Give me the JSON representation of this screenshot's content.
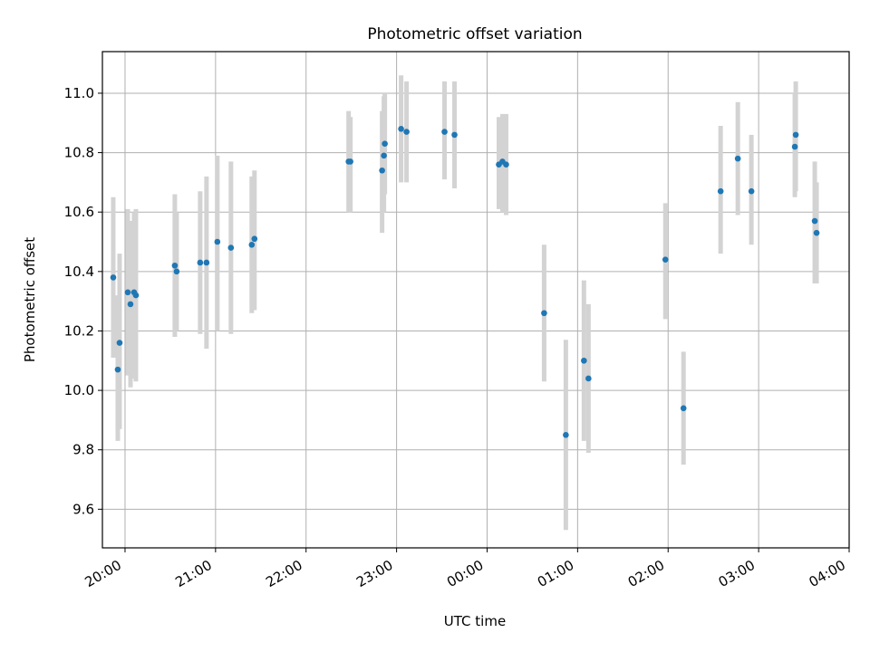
{
  "chart_data": {
    "type": "scatter",
    "title": "Photometric offset variation",
    "xlabel": "UTC time",
    "ylabel": "Photometric offset",
    "x_unit": "hours (UTC, continuing past midnight)",
    "xlim": [
      19.75,
      28.0
    ],
    "ylim": [
      9.47,
      11.14
    ],
    "grid": true,
    "x_ticks": [
      {
        "value": 20,
        "label": "20:00"
      },
      {
        "value": 21,
        "label": "21:00"
      },
      {
        "value": 22,
        "label": "22:00"
      },
      {
        "value": 23,
        "label": "23:00"
      },
      {
        "value": 24,
        "label": "00:00"
      },
      {
        "value": 25,
        "label": "01:00"
      },
      {
        "value": 26,
        "label": "02:00"
      },
      {
        "value": 27,
        "label": "03:00"
      },
      {
        "value": 28,
        "label": "04:00"
      }
    ],
    "y_ticks": [
      {
        "value": 9.6,
        "label": "9.6"
      },
      {
        "value": 9.8,
        "label": "9.8"
      },
      {
        "value": 10.0,
        "label": "10.0"
      },
      {
        "value": 10.2,
        "label": "10.2"
      },
      {
        "value": 10.4,
        "label": "10.4"
      },
      {
        "value": 10.6,
        "label": "10.6"
      },
      {
        "value": 10.8,
        "label": "10.8"
      },
      {
        "value": 11.0,
        "label": "11.0"
      }
    ],
    "colors": {
      "point": "#1f77b4",
      "errorbar": "#d3d3d3",
      "grid": "#b0b0b0"
    },
    "points": [
      {
        "x": 19.87,
        "y": 10.38,
        "lo": 10.11,
        "hi": 10.65
      },
      {
        "x": 19.92,
        "y": 10.07,
        "lo": 9.83,
        "hi": 10.32
      },
      {
        "x": 19.94,
        "y": 10.16,
        "lo": 9.87,
        "hi": 10.46
      },
      {
        "x": 20.03,
        "y": 10.33,
        "lo": 10.05,
        "hi": 10.61
      },
      {
        "x": 20.06,
        "y": 10.29,
        "lo": 10.01,
        "hi": 10.57
      },
      {
        "x": 20.1,
        "y": 10.33,
        "lo": 10.04,
        "hi": 10.6
      },
      {
        "x": 20.12,
        "y": 10.32,
        "lo": 10.03,
        "hi": 10.61
      },
      {
        "x": 20.55,
        "y": 10.42,
        "lo": 10.18,
        "hi": 10.66
      },
      {
        "x": 20.57,
        "y": 10.4,
        "lo": 10.2,
        "hi": 10.6
      },
      {
        "x": 20.83,
        "y": 10.43,
        "lo": 10.19,
        "hi": 10.67
      },
      {
        "x": 20.9,
        "y": 10.43,
        "lo": 10.14,
        "hi": 10.72
      },
      {
        "x": 21.02,
        "y": 10.5,
        "lo": 10.2,
        "hi": 10.79
      },
      {
        "x": 21.17,
        "y": 10.48,
        "lo": 10.19,
        "hi": 10.77
      },
      {
        "x": 21.4,
        "y": 10.49,
        "lo": 10.26,
        "hi": 10.72
      },
      {
        "x": 21.43,
        "y": 10.51,
        "lo": 10.27,
        "hi": 10.74
      },
      {
        "x": 22.47,
        "y": 10.77,
        "lo": 10.6,
        "hi": 10.94
      },
      {
        "x": 22.49,
        "y": 10.77,
        "lo": 10.6,
        "hi": 10.92
      },
      {
        "x": 22.84,
        "y": 10.74,
        "lo": 10.53,
        "hi": 10.94
      },
      {
        "x": 22.86,
        "y": 10.79,
        "lo": 10.6,
        "hi": 10.99
      },
      {
        "x": 22.87,
        "y": 10.83,
        "lo": 10.66,
        "hi": 11.0
      },
      {
        "x": 23.05,
        "y": 10.88,
        "lo": 10.7,
        "hi": 11.06
      },
      {
        "x": 23.11,
        "y": 10.87,
        "lo": 10.7,
        "hi": 11.04
      },
      {
        "x": 23.53,
        "y": 10.87,
        "lo": 10.71,
        "hi": 11.04
      },
      {
        "x": 23.64,
        "y": 10.86,
        "lo": 10.68,
        "hi": 11.04
      },
      {
        "x": 24.13,
        "y": 10.76,
        "lo": 10.61,
        "hi": 10.92
      },
      {
        "x": 24.17,
        "y": 10.77,
        "lo": 10.6,
        "hi": 10.93
      },
      {
        "x": 24.21,
        "y": 10.76,
        "lo": 10.59,
        "hi": 10.93
      },
      {
        "x": 24.63,
        "y": 10.26,
        "lo": 10.03,
        "hi": 10.49
      },
      {
        "x": 24.87,
        "y": 9.85,
        "lo": 9.53,
        "hi": 10.17
      },
      {
        "x": 25.07,
        "y": 10.1,
        "lo": 9.83,
        "hi": 10.37
      },
      {
        "x": 25.12,
        "y": 10.04,
        "lo": 9.79,
        "hi": 10.29
      },
      {
        "x": 25.97,
        "y": 10.44,
        "lo": 10.24,
        "hi": 10.63
      },
      {
        "x": 26.17,
        "y": 9.94,
        "lo": 9.75,
        "hi": 10.13
      },
      {
        "x": 26.58,
        "y": 10.67,
        "lo": 10.46,
        "hi": 10.89
      },
      {
        "x": 26.77,
        "y": 10.78,
        "lo": 10.59,
        "hi": 10.97
      },
      {
        "x": 26.92,
        "y": 10.67,
        "lo": 10.49,
        "hi": 10.86
      },
      {
        "x": 27.4,
        "y": 10.82,
        "lo": 10.65,
        "hi": 11.0
      },
      {
        "x": 27.41,
        "y": 10.86,
        "lo": 10.67,
        "hi": 11.04
      },
      {
        "x": 27.62,
        "y": 10.57,
        "lo": 10.36,
        "hi": 10.77
      },
      {
        "x": 27.64,
        "y": 10.53,
        "lo": 10.36,
        "hi": 10.7
      }
    ]
  }
}
